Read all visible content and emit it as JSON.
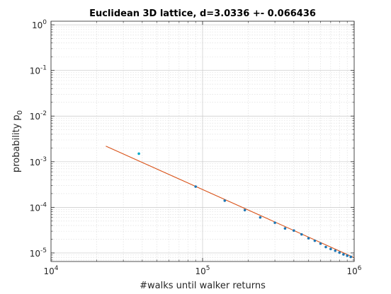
{
  "chart_data": {
    "type": "scatter",
    "title": "Euclidean 3D lattice, d=3.0336 +- 0.066436",
    "xlabel": "#walks until walker returns",
    "ylabel": "probability p",
    "ylabel_subscript": "0",
    "xscale": "log",
    "yscale": "log",
    "xlim": [
      10000,
      1000000
    ],
    "ylim": [
      6.5e-06,
      1.2
    ],
    "grid": true,
    "minor_grid": true,
    "x_ticks": [
      {
        "value": 10000,
        "base": "10",
        "exp": "4"
      },
      {
        "value": 100000,
        "base": "10",
        "exp": "5"
      },
      {
        "value": 1000000,
        "base": "10",
        "exp": "6"
      }
    ],
    "y_ticks": [
      {
        "value": 1,
        "base": "10",
        "exp": "0"
      },
      {
        "value": 0.1,
        "base": "10",
        "exp": "-1"
      },
      {
        "value": 0.01,
        "base": "10",
        "exp": "-2"
      },
      {
        "value": 0.001,
        "base": "10",
        "exp": "-3"
      },
      {
        "value": 0.0001,
        "base": "10",
        "exp": "-4"
      },
      {
        "value": 1e-05,
        "base": "10",
        "exp": "-5"
      }
    ],
    "series": [
      {
        "kind": "points",
        "color": "#1f77b4",
        "outlier_color": "#00a8c8",
        "points": [
          {
            "x": 38000,
            "y": 0.0015
          },
          {
            "x": 90000,
            "y": 0.000285
          },
          {
            "x": 140000,
            "y": 0.00014
          },
          {
            "x": 190000,
            "y": 8.7e-05
          },
          {
            "x": 240000,
            "y": 6e-05
          },
          {
            "x": 300000,
            "y": 4.6e-05
          },
          {
            "x": 350000,
            "y": 3.45e-05
          },
          {
            "x": 400000,
            "y": 3.1e-05
          },
          {
            "x": 450000,
            "y": 2.55e-05
          },
          {
            "x": 500000,
            "y": 2.1e-05
          },
          {
            "x": 550000,
            "y": 1.85e-05
          },
          {
            "x": 600000,
            "y": 1.6e-05
          },
          {
            "x": 650000,
            "y": 1.35e-05
          },
          {
            "x": 700000,
            "y": 1.22e-05
          },
          {
            "x": 750000,
            "y": 1.12e-05
          },
          {
            "x": 800000,
            "y": 1.02e-05
          },
          {
            "x": 850000,
            "y": 9.3e-06
          },
          {
            "x": 900000,
            "y": 8.7e-06
          },
          {
            "x": 950000,
            "y": 8.2e-06
          }
        ]
      },
      {
        "kind": "fit_line",
        "color": "#d95319",
        "from": {
          "x": 23000,
          "y": 0.0022
        },
        "to": {
          "x": 1000000,
          "y": 7.9e-06
        }
      }
    ]
  }
}
